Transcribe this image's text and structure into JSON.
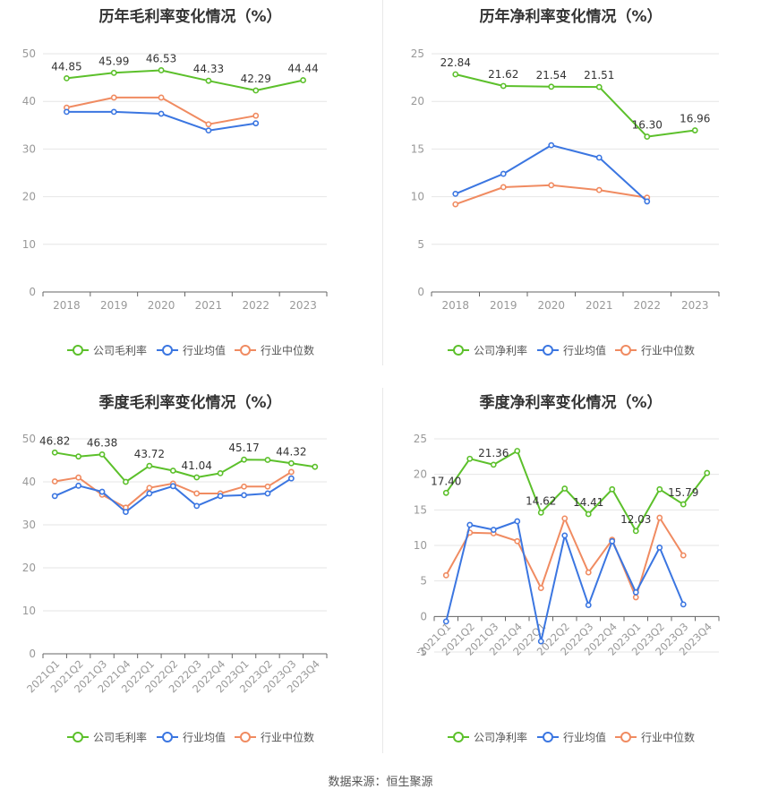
{
  "source": "数据来源：恒生聚源",
  "legend_labels": {
    "gross_company": "公司毛利率",
    "net_company": "公司净利率",
    "industry_mean": "行业均值",
    "industry_median": "行业中位数"
  },
  "colors": {
    "company": "#5cc02b",
    "mean": "#3b76e1",
    "median": "#f08b61",
    "axis": "#999999",
    "grid": "#e6e6e6",
    "label": "#555555"
  },
  "chart_data": [
    {
      "type": "line",
      "title": "历年毛利率变化情况（%）",
      "categories": [
        "2018",
        "2019",
        "2020",
        "2021",
        "2022",
        "2023"
      ],
      "ylim": [
        0,
        50
      ],
      "yticks": [
        0,
        10,
        20,
        30,
        40,
        50
      ],
      "series": [
        {
          "name": "公司毛利率",
          "color": "#5cc02b",
          "values": [
            44.85,
            45.99,
            46.53,
            44.33,
            42.29,
            44.44
          ],
          "labels": [
            "44.85",
            "45.99",
            "46.53",
            "44.33",
            "42.29",
            "44.44"
          ]
        },
        {
          "name": "行业均值",
          "color": "#3b76e1",
          "values": [
            37.8,
            37.8,
            37.4,
            33.9,
            35.4,
            null
          ]
        },
        {
          "name": "行业中位数",
          "color": "#f08b61",
          "values": [
            38.7,
            40.8,
            40.8,
            35.2,
            37.0,
            null
          ]
        }
      ],
      "rotate_x": false
    },
    {
      "type": "line",
      "title": "历年净利率变化情况（%）",
      "categories": [
        "2018",
        "2019",
        "2020",
        "2021",
        "2022",
        "2023"
      ],
      "ylim": [
        0,
        25
      ],
      "yticks": [
        0,
        5,
        10,
        15,
        20,
        25
      ],
      "series": [
        {
          "name": "公司净利率",
          "color": "#5cc02b",
          "values": [
            22.84,
            21.62,
            21.54,
            21.51,
            16.3,
            16.96
          ],
          "labels": [
            "22.84",
            "21.62",
            "21.54",
            "21.51",
            "16.30",
            "16.96"
          ]
        },
        {
          "name": "行业均值",
          "color": "#3b76e1",
          "values": [
            10.3,
            12.4,
            15.4,
            14.1,
            9.5,
            null
          ]
        },
        {
          "name": "行业中位数",
          "color": "#f08b61",
          "values": [
            9.2,
            11.0,
            11.2,
            10.7,
            9.9,
            null
          ]
        }
      ],
      "rotate_x": false
    },
    {
      "type": "line",
      "title": "季度毛利率变化情况（%）",
      "categories": [
        "2021Q1",
        "2021Q2",
        "2021Q3",
        "2021Q4",
        "2022Q1",
        "2022Q2",
        "2022Q3",
        "2022Q4",
        "2023Q1",
        "2023Q2",
        "2023Q3",
        "2023Q4"
      ],
      "ylim": [
        0,
        50
      ],
      "yticks": [
        0,
        10,
        20,
        30,
        40,
        50
      ],
      "series": [
        {
          "name": "公司毛利率",
          "color": "#5cc02b",
          "values": [
            46.82,
            45.9,
            46.38,
            40.0,
            43.72,
            42.6,
            41.04,
            42.0,
            45.17,
            45.1,
            44.32,
            43.5
          ],
          "labels": [
            "46.82",
            "",
            "46.38",
            "",
            "43.72",
            "",
            "41.04",
            "",
            "45.17",
            "",
            "44.32",
            ""
          ]
        },
        {
          "name": "行业均值",
          "color": "#3b76e1",
          "values": [
            36.7,
            39.1,
            37.7,
            33.0,
            37.3,
            39.0,
            34.4,
            36.7,
            36.9,
            37.3,
            40.8,
            null
          ]
        },
        {
          "name": "行业中位数",
          "color": "#f08b61",
          "values": [
            40.1,
            41.0,
            37.0,
            34.0,
            38.6,
            39.6,
            37.3,
            37.3,
            38.9,
            38.9,
            42.3,
            null
          ]
        }
      ],
      "rotate_x": true
    },
    {
      "type": "line",
      "title": "季度净利率变化情况（%）",
      "categories": [
        "2021Q1",
        "2021Q2",
        "2021Q3",
        "2021Q4",
        "2022Q1",
        "2022Q2",
        "2022Q3",
        "2022Q4",
        "2023Q1",
        "2023Q2",
        "2023Q3",
        "2023Q4"
      ],
      "ylim": [
        -5,
        25
      ],
      "yticks": [
        -5,
        0,
        5,
        10,
        15,
        20,
        25
      ],
      "series": [
        {
          "name": "公司净利率",
          "color": "#5cc02b",
          "values": [
            17.4,
            22.2,
            21.36,
            23.3,
            14.62,
            18.0,
            14.41,
            17.9,
            12.03,
            17.9,
            15.79,
            20.2
          ],
          "labels": [
            "17.40",
            "",
            "21.36",
            "",
            "14.62",
            "",
            "14.41",
            "",
            "12.03",
            "",
            "15.79",
            ""
          ]
        },
        {
          "name": "行业均值",
          "color": "#3b76e1",
          "values": [
            -0.7,
            12.9,
            12.2,
            13.4,
            -3.5,
            11.4,
            1.6,
            10.6,
            3.4,
            9.7,
            1.7,
            null
          ]
        },
        {
          "name": "行业中位数",
          "color": "#f08b61",
          "values": [
            5.8,
            11.8,
            11.7,
            10.6,
            4.0,
            13.8,
            6.2,
            10.8,
            2.7,
            13.9,
            8.6,
            null
          ]
        }
      ],
      "rotate_x": true
    }
  ]
}
